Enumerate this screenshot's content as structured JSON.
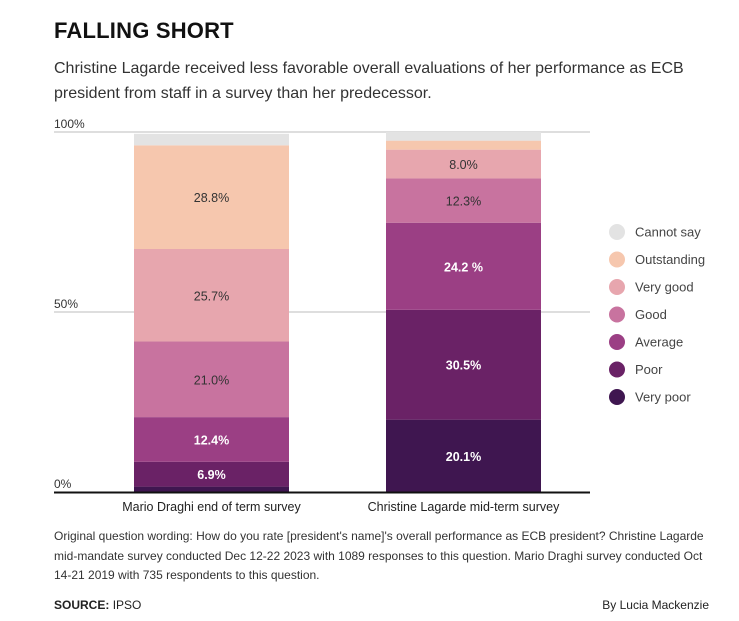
{
  "chart_data": {
    "type": "bar",
    "stacked": true,
    "title": "FALLING SHORT",
    "subtitle": "Christine Lagarde received less favorable overall evaluations of her performance as ECB president from staff in a survey than her predecessor.",
    "categories": [
      "Mario Draghi end of term survey",
      "Christine Lagarde mid-term survey"
    ],
    "y_ticks": [
      "0%",
      "50%",
      "100%"
    ],
    "ylim": [
      0,
      100
    ],
    "legend_position": "right",
    "series": [
      {
        "name": "Very poor",
        "color": "#3f1650",
        "values": [
          1.5,
          20.1
        ],
        "labels": [
          "",
          "20.1%"
        ]
      },
      {
        "name": "Poor",
        "color": "#6a2266",
        "values": [
          6.9,
          30.5
        ],
        "labels": [
          "6.9%",
          "30.5%"
        ]
      },
      {
        "name": "Average",
        "color": "#9b3f84",
        "values": [
          12.4,
          24.2
        ],
        "labels": [
          "12.4%",
          "24.2 %"
        ]
      },
      {
        "name": "Good",
        "color": "#c8739f",
        "values": [
          21.0,
          12.3
        ],
        "labels": [
          "21.0%",
          "12.3%"
        ]
      },
      {
        "name": "Very good",
        "color": "#e7a6ae",
        "values": [
          25.7,
          8.0
        ],
        "labels": [
          "25.7%",
          "8.0%"
        ]
      },
      {
        "name": "Outstanding",
        "color": "#f6c7ae",
        "values": [
          28.8,
          2.5
        ],
        "labels": [
          "28.8%",
          ""
        ]
      },
      {
        "name": "Cannot say",
        "color": "#e3e3e3",
        "values": [
          3.2,
          2.4
        ],
        "labels": [
          "",
          ""
        ]
      }
    ],
    "legend_order": [
      "Cannot say",
      "Outstanding",
      "Very good",
      "Good",
      "Average",
      "Poor",
      "Very poor"
    ]
  },
  "note": "Original question wording: How do you rate [president's name]'s overall performance as ECB president? Christine Lagarde mid-mandate survey conducted Dec 12-22 2023 with 1089 responses to this question. Mario Draghi survey conducted Oct 14-21 2019 with 735 respondents to this question.",
  "source_label": "SOURCE:",
  "source_value": "IPSO",
  "byline": "By Lucia Mackenzie"
}
